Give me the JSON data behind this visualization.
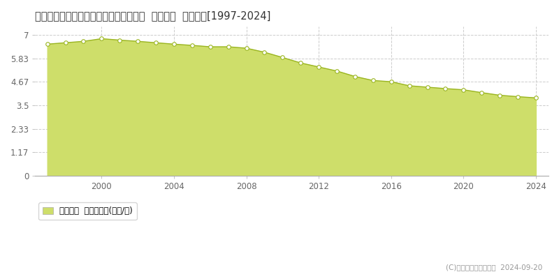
{
  "title": "鳥取県鳥取市上味野字上り立７４番１外  基準地価  地価推移[1997-2024]",
  "years": [
    1997,
    1998,
    1999,
    2000,
    2001,
    2002,
    2003,
    2004,
    2005,
    2006,
    2007,
    2008,
    2009,
    2010,
    2011,
    2012,
    2013,
    2014,
    2015,
    2016,
    2017,
    2018,
    2019,
    2020,
    2021,
    2022,
    2023,
    2024
  ],
  "values": [
    6.53,
    6.6,
    6.67,
    6.8,
    6.73,
    6.67,
    6.6,
    6.53,
    6.47,
    6.4,
    6.4,
    6.33,
    6.13,
    5.87,
    5.6,
    5.4,
    5.2,
    4.93,
    4.73,
    4.67,
    4.47,
    4.4,
    4.33,
    4.27,
    4.13,
    4.0,
    3.93,
    3.87
  ],
  "line_color": "#9ab520",
  "fill_color": "#cede6a",
  "fill_alpha": 1.0,
  "marker_color": "white",
  "marker_edge_color": "#9ab520",
  "background_color": "#ffffff",
  "plot_bg_color": "#ffffff",
  "yticks": [
    0,
    1.17,
    2.33,
    3.5,
    4.67,
    5.83,
    7
  ],
  "ytick_labels": [
    "0",
    "1.17",
    "2.33",
    "3.5",
    "4.67",
    "5.83",
    "7"
  ],
  "xticks": [
    2000,
    2004,
    2008,
    2012,
    2016,
    2020,
    2024
  ],
  "xtick_labels": [
    "2000",
    "2004",
    "2008",
    "2012",
    "2016",
    "2020",
    "2024"
  ],
  "ylim": [
    0,
    7.4
  ],
  "xlim": [
    1996.3,
    2024.7
  ],
  "legend_label": "基準地価  平均坪単価(万円/坪)",
  "legend_color": "#cede6a",
  "copyright_text": "(C)土地価格ドットコム  2024-09-20",
  "grid_color": "#cccccc",
  "grid_style": "--"
}
